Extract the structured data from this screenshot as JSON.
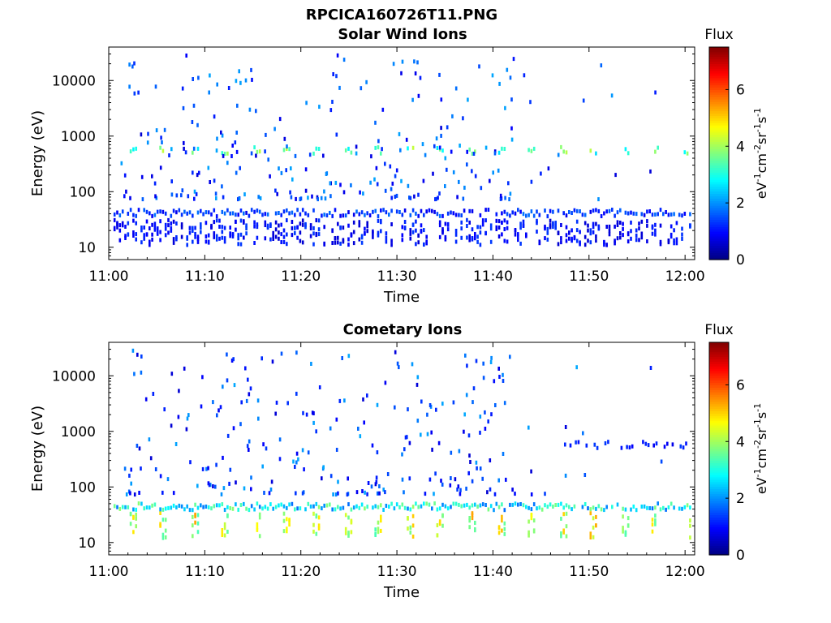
{
  "figure_title": "RPCICA160726T11.PNG",
  "chart_data": [
    {
      "type": "heatmap",
      "title": "Solar Wind Ions",
      "xlabel": "Time",
      "ylabel": "Energy (eV)",
      "x_range": [
        "11:00",
        "12:01"
      ],
      "y_range": [
        6,
        40000
      ],
      "y_scale": "log",
      "xticks": [
        "11:00",
        "11:10",
        "11:20",
        "11:30",
        "11:40",
        "11:50",
        "12:00"
      ],
      "yticks": [
        "10",
        "100",
        "1000",
        "10000"
      ],
      "colorbar": {
        "label": "Flux",
        "units": "eV-1cm-2sr-1s-1",
        "range": [
          0,
          7.5
        ],
        "ticks": [
          "0",
          "2",
          "4",
          "6"
        ],
        "colormap": "jet"
      },
      "bands": [
        {
          "name": "low-energy band",
          "energy_eV": 20,
          "intensity": 1.0,
          "density": 0.75
        },
        {
          "name": "mid band",
          "energy_eV": 45,
          "intensity": 1.3,
          "density": 0.85
        },
        {
          "name": "peak",
          "energy_eV": 600,
          "intensity": 3.4,
          "density": 0.9,
          "periodic_minutes": 3.2
        }
      ],
      "sparse_points": true
    },
    {
      "type": "heatmap",
      "title": "Cometary Ions",
      "xlabel": "Time",
      "ylabel": "Energy (eV)",
      "x_range": [
        "11:00",
        "12:01"
      ],
      "y_range": [
        6,
        40000
      ],
      "y_scale": "log",
      "xticks": [
        "11:00",
        "11:10",
        "11:20",
        "11:30",
        "11:40",
        "11:50",
        "12:00"
      ],
      "yticks": [
        "10",
        "100",
        "1000",
        "10000"
      ],
      "colorbar": {
        "label": "Flux",
        "units": "eV-1cm-2sr-1s-1",
        "range": [
          0,
          7.5
        ],
        "ticks": [
          "0",
          "2",
          "4",
          "6"
        ],
        "colormap": "jet"
      },
      "bands": [
        {
          "name": "main band",
          "energy_eV": 22,
          "intensity": 4.3,
          "density": 0.9,
          "periodic_minutes": 3.2
        },
        {
          "name": "upper band",
          "energy_eV": 48,
          "intensity": 2.8,
          "density": 0.95
        },
        {
          "name": "high line",
          "energy_eV": 620,
          "intensity": 1.0,
          "density": 0.4,
          "start_minute": 46
        }
      ],
      "sparse_points": true
    }
  ]
}
